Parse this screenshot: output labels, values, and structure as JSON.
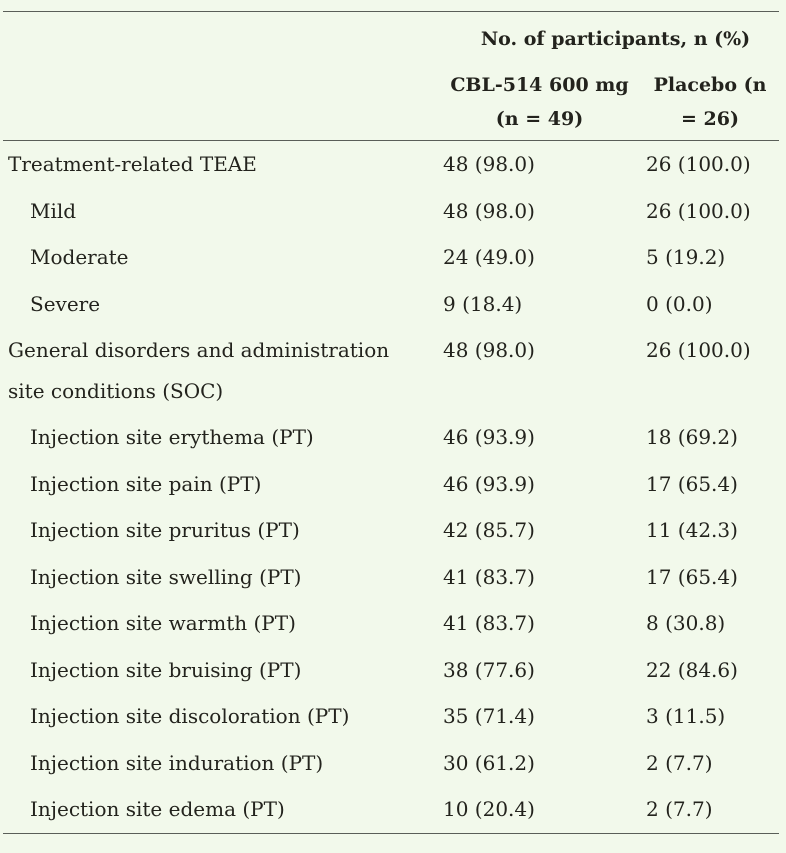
{
  "table": {
    "group_header": "No. of participants, n (%)",
    "columns": [
      "CBL-514 600 mg (n = 49)",
      "Placebo (n = 26)"
    ],
    "rows": [
      {
        "label": "Treatment-related TEAE",
        "cbl514": "48 (98.0)",
        "placebo": "26 (100.0)"
      },
      {
        "label": "Mild",
        "cbl514": "48 (98.0)",
        "placebo": "26 (100.0)"
      },
      {
        "label": "Moderate",
        "cbl514": "24 (49.0)",
        "placebo": "5 (19.2)"
      },
      {
        "label": "Severe",
        "cbl514": "9 (18.4)",
        "placebo": "0 (0.0)"
      },
      {
        "label": "General disorders and administration site conditions (SOC)",
        "cbl514": "48 (98.0)",
        "placebo": "26 (100.0)"
      },
      {
        "label": "Injection site erythema (PT)",
        "cbl514": "46 (93.9)",
        "placebo": "18 (69.2)"
      },
      {
        "label": "Injection site pain (PT)",
        "cbl514": "46 (93.9)",
        "placebo": "17 (65.4)"
      },
      {
        "label": "Injection site pruritus (PT)",
        "cbl514": "42 (85.7)",
        "placebo": "11 (42.3)"
      },
      {
        "label": "Injection site swelling (PT)",
        "cbl514": "41 (83.7)",
        "placebo": "17 (65.4)"
      },
      {
        "label": "Injection site warmth (PT)",
        "cbl514": "41 (83.7)",
        "placebo": "8 (30.8)"
      },
      {
        "label": "Injection site bruising (PT)",
        "cbl514": "38 (77.6)",
        "placebo": "22 (84.6)"
      },
      {
        "label": "Injection site discoloration (PT)",
        "cbl514": "35 (71.4)",
        "placebo": "3 (11.5)"
      },
      {
        "label": "Injection site induration (PT)",
        "cbl514": "30 (61.2)",
        "placebo": "2 (7.7)"
      },
      {
        "label": "Injection site edema (PT)",
        "cbl514": "10 (20.4)",
        "placebo": "2 (7.7)"
      }
    ]
  },
  "colors": {
    "background": "#f2f9eb",
    "text": "#23231d",
    "rule": "#5a5f58"
  }
}
